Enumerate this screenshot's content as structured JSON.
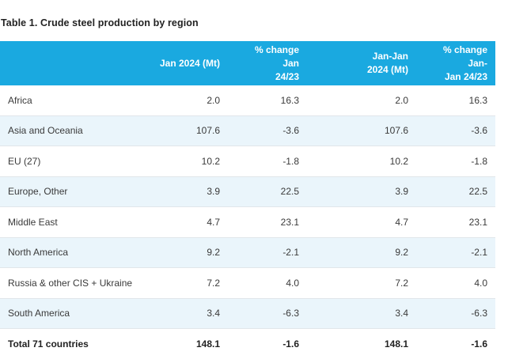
{
  "title": "Table 1. Crude steel production by region",
  "table": {
    "headers": [
      "",
      "Jan 2024 (Mt)",
      "% change Jan 24/23",
      "Jan-Jan 2024 (Mt)",
      "% change Jan-Jan 24/23"
    ],
    "header_lines": [
      [
        ""
      ],
      [
        "Jan 2024 (Mt)"
      ],
      [
        "% change Jan",
        "24/23"
      ],
      [
        "Jan-Jan",
        "2024 (Mt)"
      ],
      [
        "% change Jan-",
        "Jan 24/23"
      ]
    ],
    "rows": [
      [
        "Africa",
        "2.0",
        "16.3",
        "2.0",
        "16.3"
      ],
      [
        "Asia and Oceania",
        "107.6",
        "-3.6",
        "107.6",
        "-3.6"
      ],
      [
        "EU (27)",
        "10.2",
        "-1.8",
        "10.2",
        "-1.8"
      ],
      [
        "Europe, Other",
        "3.9",
        "22.5",
        "3.9",
        "22.5"
      ],
      [
        "Middle East",
        "4.7",
        "23.1",
        "4.7",
        "23.1"
      ],
      [
        "North America",
        "9.2",
        "-2.1",
        "9.2",
        "-2.1"
      ],
      [
        "Russia & other CIS + Ukraine",
        "7.2",
        "4.0",
        "7.2",
        "4.0"
      ],
      [
        "South America",
        "3.4",
        "-6.3",
        "3.4",
        "-6.3"
      ]
    ],
    "total": [
      "Total 71 countries",
      "148.1",
      "-1.6",
      "148.1",
      "-1.6"
    ]
  },
  "colors": {
    "header_bg": "#1aa9e0",
    "row_alt_bg": "#eaf5fb"
  }
}
